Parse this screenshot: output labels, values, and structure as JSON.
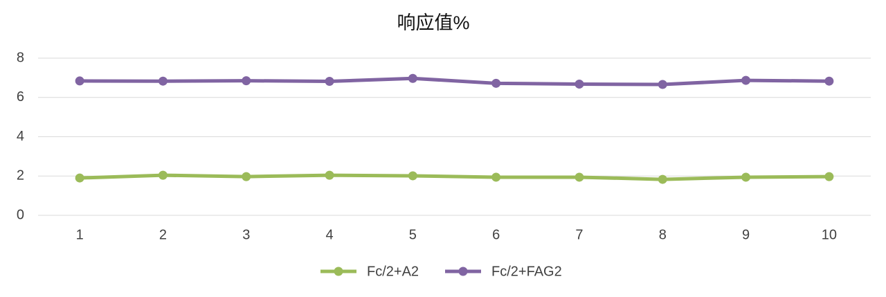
{
  "chart_data": {
    "type": "line",
    "title": "响应值%",
    "categories": [
      "1",
      "2",
      "3",
      "4",
      "5",
      "6",
      "7",
      "8",
      "9",
      "10"
    ],
    "series": [
      {
        "name": "Fc/2+A2",
        "color": "#9bbb59",
        "values": [
          1.9,
          2.04,
          1.97,
          2.04,
          2.01,
          1.94,
          1.94,
          1.83,
          1.94,
          1.97
        ]
      },
      {
        "name": "Fc/2+FAG2",
        "color": "#8064a2",
        "values": [
          6.84,
          6.83,
          6.85,
          6.82,
          6.97,
          6.72,
          6.68,
          6.66,
          6.87,
          6.83
        ]
      }
    ],
    "ylim": [
      0,
      8
    ],
    "yticks": [
      0,
      2,
      4,
      6,
      8
    ],
    "grid": true,
    "legend": "bottom"
  }
}
